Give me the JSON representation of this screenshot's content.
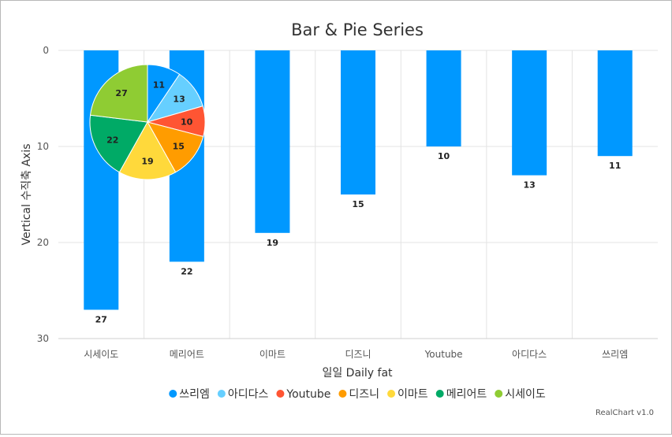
{
  "chart_data": {
    "type": "bar",
    "title": "Bar & Pie Series",
    "xlabel": "일일 Daily fat",
    "ylabel": "Vertical 수직축 Axis",
    "ylim": [
      0,
      30
    ],
    "y_reversed": true,
    "yticks": [
      0,
      10,
      20,
      30
    ],
    "grid": true,
    "legend": "bottom",
    "categories": [
      "시세이도",
      "메리어트",
      "이마트",
      "디즈니",
      "Youtube",
      "아디다스",
      "쓰리엠"
    ],
    "series": [
      {
        "type": "bar",
        "color": "#0098ff",
        "values": [
          27,
          22,
          19,
          15,
          10,
          13,
          11
        ]
      },
      {
        "type": "pie",
        "slices": [
          {
            "name": "쓰리엠",
            "value": 11,
            "color": "#0098ff"
          },
          {
            "name": "아디다스",
            "value": 13,
            "color": "#66cfff"
          },
          {
            "name": "Youtube",
            "value": 10,
            "color": "#ff5533"
          },
          {
            "name": "디즈니",
            "value": 15,
            "color": "#ff9c00"
          },
          {
            "name": "이마트",
            "value": 19,
            "color": "#ffd93b"
          },
          {
            "name": "메리어트",
            "value": 22,
            "color": "#00aa66"
          },
          {
            "name": "시세이도",
            "value": 27,
            "color": "#8fcc33"
          }
        ]
      }
    ]
  },
  "credits": "RealChart v1.0"
}
